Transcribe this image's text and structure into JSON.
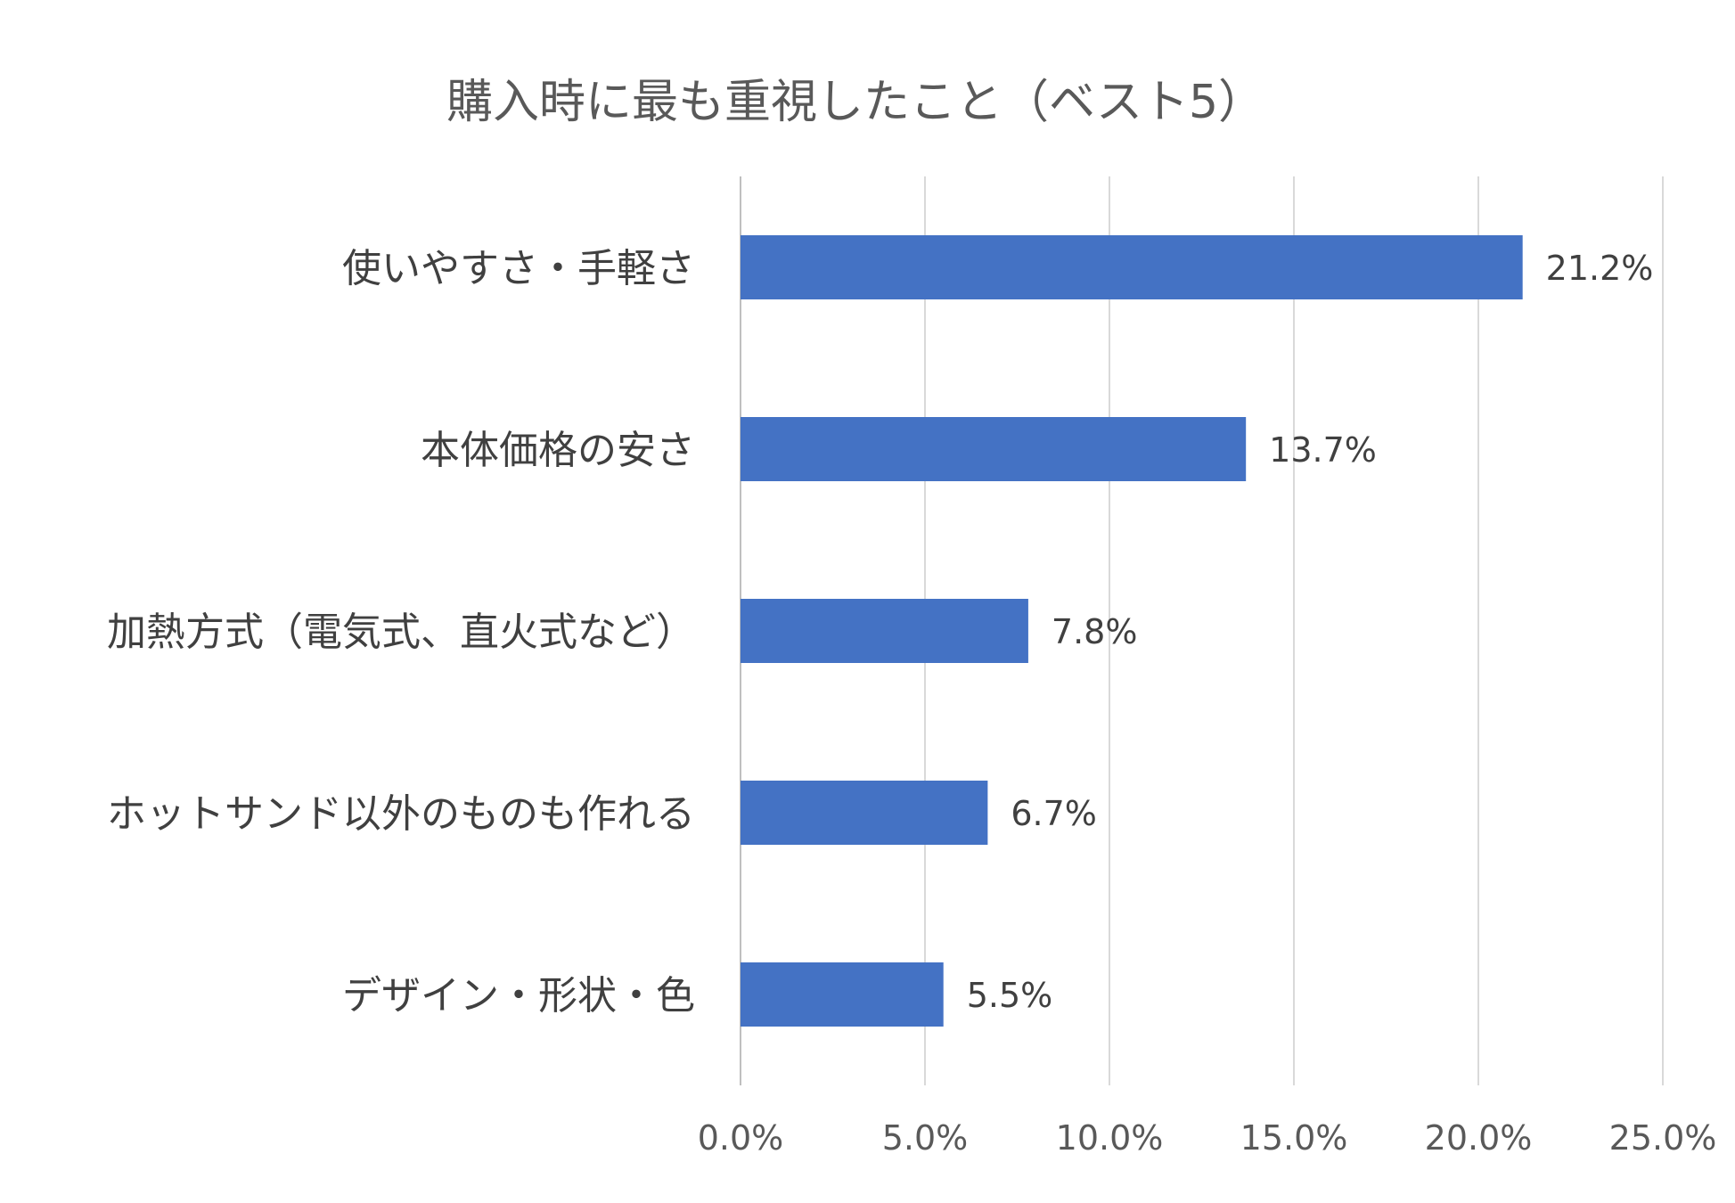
{
  "chart_data": {
    "type": "bar",
    "orientation": "horizontal",
    "title": "購入時に最も重視したこと（ベスト5）",
    "categories": [
      "使いやすさ・手軽さ",
      "本体価格の安さ",
      "加熱方式（電気式、直火式など）",
      "ホットサンド以外のものも作れる",
      "デザイン・形状・色"
    ],
    "values": [
      21.2,
      13.7,
      7.8,
      6.7,
      5.5
    ],
    "value_labels": [
      "21.2%",
      "13.7%",
      "7.8%",
      "6.7%",
      "5.5%"
    ],
    "xlim": [
      0,
      25
    ],
    "xticks": [
      0,
      5,
      10,
      15,
      20,
      25
    ],
    "xtick_labels": [
      "0.0%",
      "5.0%",
      "10.0%",
      "15.0%",
      "20.0%",
      "25.0%"
    ],
    "xlabel": "",
    "ylabel": "",
    "grid": true,
    "legend": "none",
    "bar_color": "#4472c4"
  }
}
